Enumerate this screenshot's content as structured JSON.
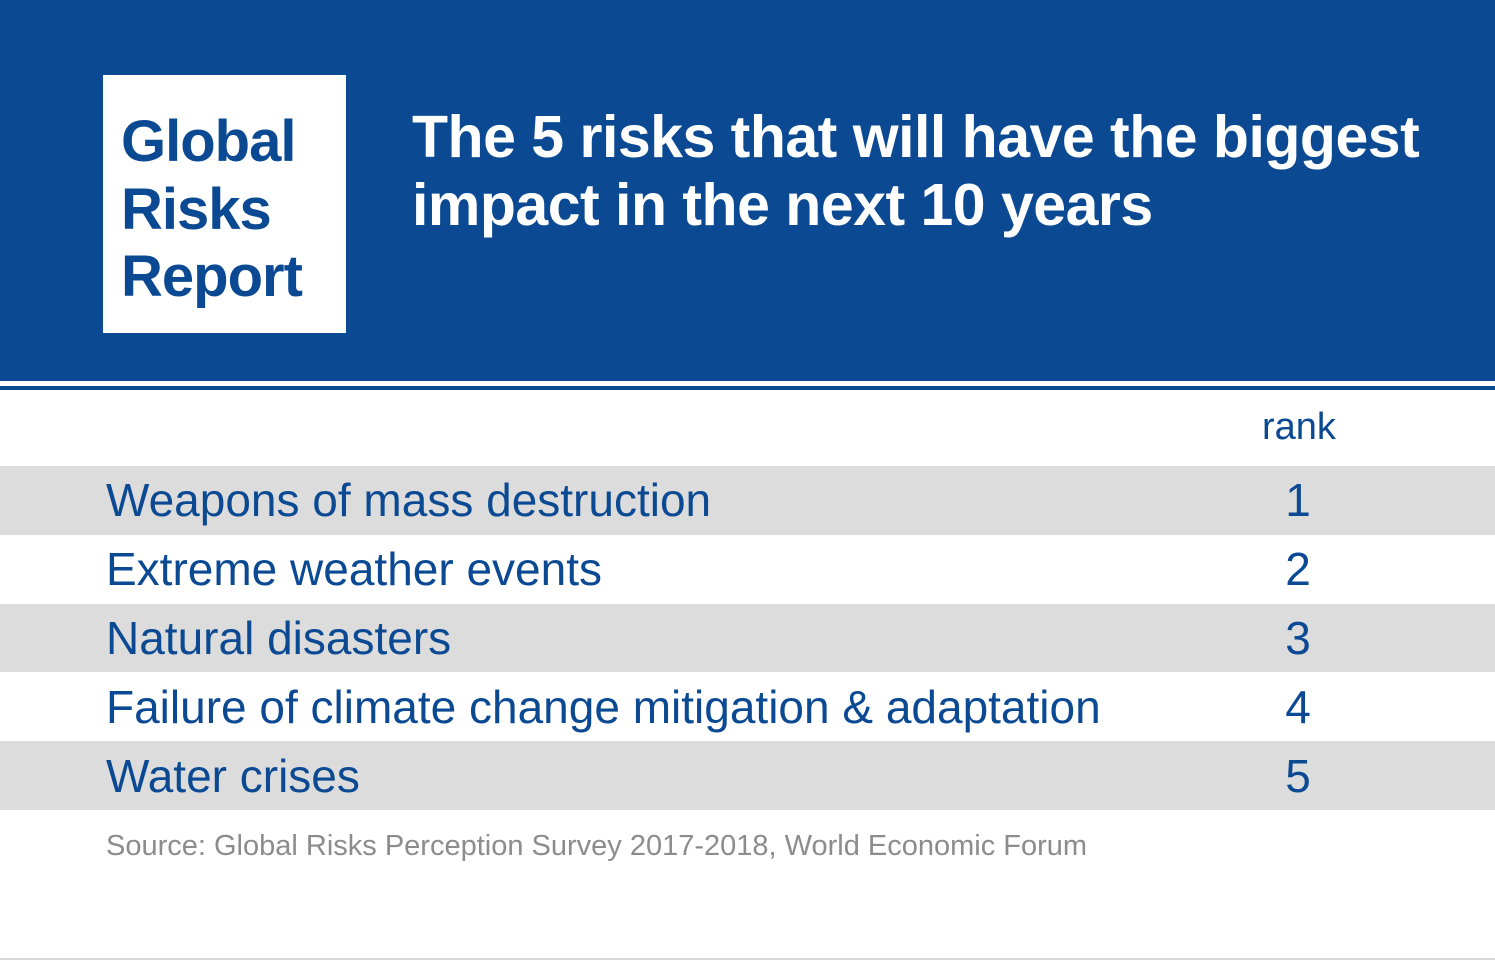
{
  "colors": {
    "brand_blue": "#0b4a93",
    "row_shade": "#dcdcdc",
    "source_gray": "#8c8c8c"
  },
  "logo": {
    "lines": [
      "Global",
      "Risks",
      "Report"
    ]
  },
  "title": "The 5 risks that will have the biggest impact in the next 10 years",
  "chart_data": {
    "type": "table",
    "title": "The 5 risks that will have the biggest impact in the next 10 years",
    "columns": [
      "",
      "rank"
    ],
    "rows": [
      {
        "label": "Weapons of mass destruction",
        "rank": 1
      },
      {
        "label": "Extreme weather events",
        "rank": 2
      },
      {
        "label": "Natural disasters",
        "rank": 3
      },
      {
        "label": "Failure of climate change mitigation & adaptation",
        "rank": 4
      },
      {
        "label": "Water crises",
        "rank": 5
      }
    ],
    "source": "Source: Global Risks Perception Survey 2017-2018, World Economic Forum"
  }
}
